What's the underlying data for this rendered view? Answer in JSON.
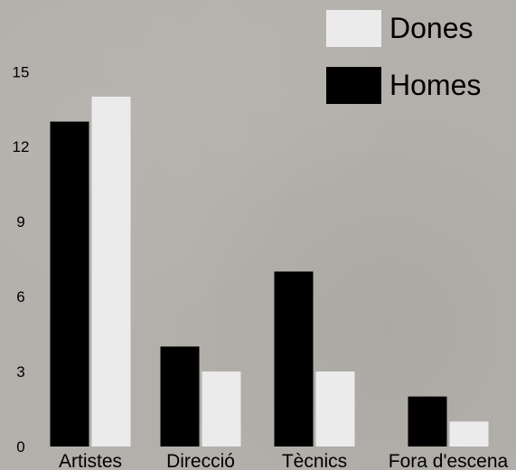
{
  "chart_data": {
    "type": "bar",
    "title": "",
    "xlabel": "",
    "ylabel": "",
    "categories": [
      "Artistes",
      "Direcció",
      "Tècnics",
      "Fora d'escena"
    ],
    "series": [
      {
        "name": "Homes",
        "values": [
          13,
          4,
          7,
          2
        ],
        "color": "#000000"
      },
      {
        "name": "Dones",
        "values": [
          14,
          3,
          3,
          1
        ],
        "color": "#ebebeb"
      }
    ],
    "yticks": [
      0,
      3,
      6,
      9,
      12,
      15
    ],
    "ylim": [
      0,
      15.5
    ],
    "grid": false,
    "legend_position": "top-right",
    "legend_order": [
      "Dones",
      "Homes"
    ],
    "background_color": "#b3b0ab"
  }
}
